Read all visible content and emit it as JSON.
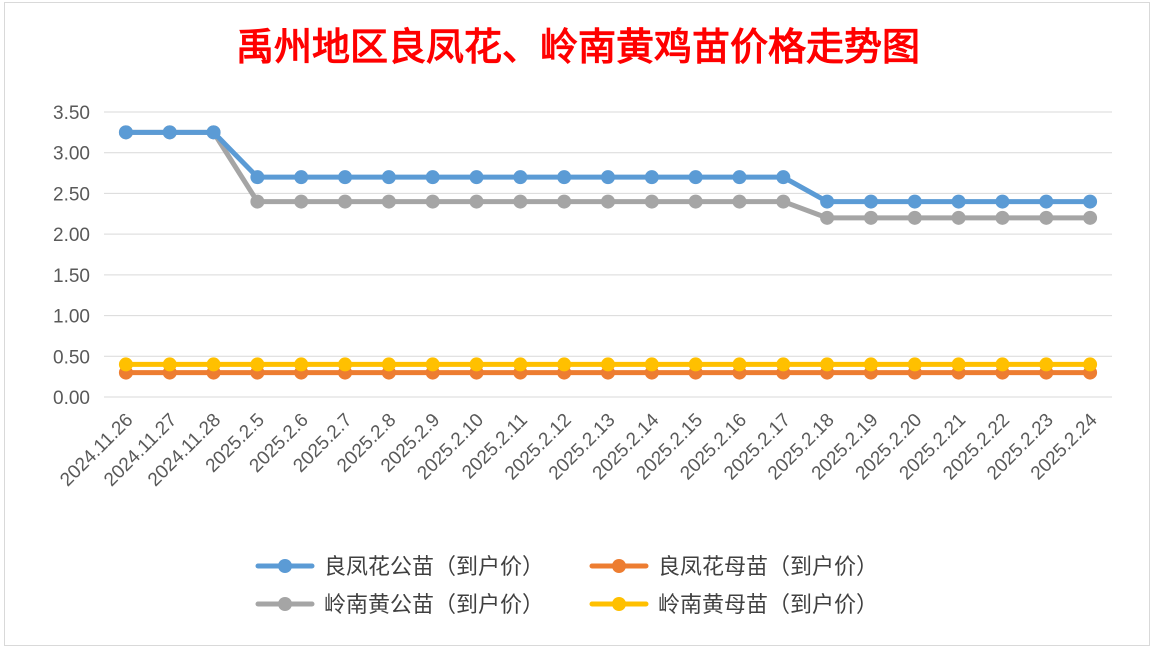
{
  "chart_data": {
    "type": "line",
    "title": "禹州地区良凤花、岭南黄鸡苗价格走势图",
    "xlabel": "",
    "ylabel": "",
    "ylim": [
      0,
      3.5
    ],
    "yticks": [
      "0.00",
      "0.50",
      "1.00",
      "1.50",
      "2.00",
      "2.50",
      "3.00",
      "3.50"
    ],
    "grid": true,
    "legend_position": "bottom",
    "categories": [
      "2024.11.26",
      "2024.11.27",
      "2024.11.28",
      "2025.2.5",
      "2025.2.6",
      "2025.2.7",
      "2025.2.8",
      "2025.2.9",
      "2025.2.10",
      "2025.2.11",
      "2025.2.12",
      "2025.2.13",
      "2025.2.14",
      "2025.2.15",
      "2025.2.16",
      "2025.2.17",
      "2025.2.18",
      "2025.2.19",
      "2025.2.20",
      "2025.2.21",
      "2025.2.22",
      "2025.2.23",
      "2025.2.24"
    ],
    "series": [
      {
        "name": "良凤花公苗（到户价）",
        "color": "#5b9bd5",
        "values": [
          3.25,
          3.25,
          3.25,
          2.7,
          2.7,
          2.7,
          2.7,
          2.7,
          2.7,
          2.7,
          2.7,
          2.7,
          2.7,
          2.7,
          2.7,
          2.7,
          2.4,
          2.4,
          2.4,
          2.4,
          2.4,
          2.4,
          2.4
        ]
      },
      {
        "name": "良凤花母苗（到户价）",
        "color": "#ed7d31",
        "values": [
          0.3,
          0.3,
          0.3,
          0.3,
          0.3,
          0.3,
          0.3,
          0.3,
          0.3,
          0.3,
          0.3,
          0.3,
          0.3,
          0.3,
          0.3,
          0.3,
          0.3,
          0.3,
          0.3,
          0.3,
          0.3,
          0.3,
          0.3
        ]
      },
      {
        "name": "岭南黄公苗（到户价）",
        "color": "#a5a5a5",
        "values": [
          3.25,
          3.25,
          3.25,
          2.4,
          2.4,
          2.4,
          2.4,
          2.4,
          2.4,
          2.4,
          2.4,
          2.4,
          2.4,
          2.4,
          2.4,
          2.4,
          2.2,
          2.2,
          2.2,
          2.2,
          2.2,
          2.2,
          2.2
        ]
      },
      {
        "name": "岭南黄母苗（到户价）",
        "color": "#ffc000",
        "values": [
          0.4,
          0.4,
          0.4,
          0.4,
          0.4,
          0.4,
          0.4,
          0.4,
          0.4,
          0.4,
          0.4,
          0.4,
          0.4,
          0.4,
          0.4,
          0.4,
          0.4,
          0.4,
          0.4,
          0.4,
          0.4,
          0.4,
          0.4
        ]
      }
    ],
    "title_color": "#ff0000"
  }
}
